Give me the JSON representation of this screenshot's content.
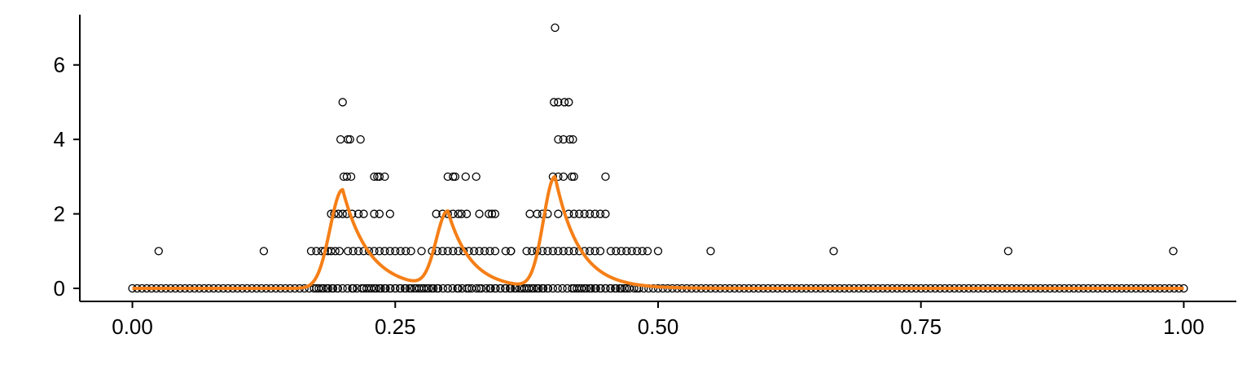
{
  "chart_data": {
    "type": "scatter",
    "title": "",
    "xlabel": "",
    "ylabel": "",
    "xlim": [
      -0.05,
      1.05
    ],
    "ylim": [
      -0.35,
      7.35
    ],
    "x_ticks": [
      0,
      0.25,
      0.5,
      0.75,
      1
    ],
    "x_tick_labels": [
      "0.00",
      "0.25",
      "0.50",
      "0.75",
      "1.00"
    ],
    "y_ticks": [
      0,
      2,
      4,
      6
    ],
    "y_tick_labels": [
      "0",
      "2",
      "4",
      "6"
    ],
    "grid": false,
    "legend": "none",
    "colors": {
      "points_stroke": "#000000",
      "curve": "#f57f17",
      "axis": "#000000"
    },
    "series": [
      {
        "kind": "scatter",
        "points": [
          [
            0.025,
            1
          ],
          [
            0.125,
            1
          ],
          [
            0.55,
            1
          ],
          [
            0.667,
            1
          ],
          [
            0.833,
            1
          ],
          [
            0.99,
            1
          ],
          [
            0.2,
            5
          ],
          [
            0.198,
            4
          ],
          [
            0.205,
            4
          ],
          [
            0.207,
            4
          ],
          [
            0.217,
            4
          ],
          [
            0.201,
            3
          ],
          [
            0.204,
            3
          ],
          [
            0.208,
            3
          ],
          [
            0.23,
            3
          ],
          [
            0.233,
            3
          ],
          [
            0.235,
            3
          ],
          [
            0.24,
            3
          ],
          [
            0.189,
            2
          ],
          [
            0.192,
            2
          ],
          [
            0.196,
            2
          ],
          [
            0.2,
            2
          ],
          [
            0.204,
            2
          ],
          [
            0.209,
            2
          ],
          [
            0.215,
            2
          ],
          [
            0.22,
            2
          ],
          [
            0.23,
            2
          ],
          [
            0.235,
            2
          ],
          [
            0.245,
            2
          ],
          [
            0.17,
            1
          ],
          [
            0.175,
            1
          ],
          [
            0.18,
            1
          ],
          [
            0.183,
            1
          ],
          [
            0.186,
            1
          ],
          [
            0.189,
            1
          ],
          [
            0.193,
            1
          ],
          [
            0.197,
            1
          ],
          [
            0.205,
            1
          ],
          [
            0.21,
            1
          ],
          [
            0.215,
            1
          ],
          [
            0.22,
            1
          ],
          [
            0.225,
            1
          ],
          [
            0.23,
            1
          ],
          [
            0.235,
            1
          ],
          [
            0.24,
            1
          ],
          [
            0.245,
            1
          ],
          [
            0.25,
            1
          ],
          [
            0.255,
            1
          ],
          [
            0.26,
            1
          ],
          [
            0.265,
            1
          ],
          [
            0.275,
            1
          ],
          [
            0.285,
            1
          ],
          [
            0.29,
            1
          ],
          [
            0.295,
            1
          ],
          [
            0.3,
            3
          ],
          [
            0.305,
            3
          ],
          [
            0.307,
            3
          ],
          [
            0.317,
            3
          ],
          [
            0.327,
            3
          ],
          [
            0.289,
            2
          ],
          [
            0.295,
            2
          ],
          [
            0.3,
            2
          ],
          [
            0.305,
            2
          ],
          [
            0.31,
            2
          ],
          [
            0.313,
            2
          ],
          [
            0.318,
            2
          ],
          [
            0.33,
            2
          ],
          [
            0.339,
            2
          ],
          [
            0.342,
            2
          ],
          [
            0.345,
            2
          ],
          [
            0.3,
            1
          ],
          [
            0.305,
            1
          ],
          [
            0.31,
            1
          ],
          [
            0.315,
            1
          ],
          [
            0.32,
            1
          ],
          [
            0.325,
            1
          ],
          [
            0.33,
            1
          ],
          [
            0.335,
            1
          ],
          [
            0.34,
            1
          ],
          [
            0.345,
            1
          ],
          [
            0.355,
            1
          ],
          [
            0.36,
            1
          ],
          [
            0.402,
            7
          ],
          [
            0.401,
            5
          ],
          [
            0.405,
            5
          ],
          [
            0.411,
            5
          ],
          [
            0.415,
            5
          ],
          [
            0.405,
            4
          ],
          [
            0.41,
            4
          ],
          [
            0.416,
            4
          ],
          [
            0.419,
            4
          ],
          [
            0.4,
            3
          ],
          [
            0.405,
            3
          ],
          [
            0.41,
            3
          ],
          [
            0.418,
            3
          ],
          [
            0.42,
            3
          ],
          [
            0.45,
            3
          ],
          [
            0.378,
            2
          ],
          [
            0.385,
            2
          ],
          [
            0.39,
            2
          ],
          [
            0.395,
            2
          ],
          [
            0.405,
            2
          ],
          [
            0.415,
            2
          ],
          [
            0.42,
            2
          ],
          [
            0.425,
            2
          ],
          [
            0.43,
            2
          ],
          [
            0.435,
            2
          ],
          [
            0.44,
            2
          ],
          [
            0.445,
            2
          ],
          [
            0.45,
            2
          ],
          [
            0.36,
            1
          ],
          [
            0.375,
            1
          ],
          [
            0.38,
            1
          ],
          [
            0.385,
            1
          ],
          [
            0.39,
            1
          ],
          [
            0.395,
            1
          ],
          [
            0.4,
            1
          ],
          [
            0.405,
            1
          ],
          [
            0.41,
            1
          ],
          [
            0.415,
            1
          ],
          [
            0.42,
            1
          ],
          [
            0.425,
            1
          ],
          [
            0.43,
            1
          ],
          [
            0.435,
            1
          ],
          [
            0.44,
            1
          ],
          [
            0.445,
            1
          ],
          [
            0.455,
            1
          ],
          [
            0.46,
            1
          ],
          [
            0.465,
            1
          ],
          [
            0.47,
            1
          ],
          [
            0.475,
            1
          ],
          [
            0.48,
            1
          ],
          [
            0.485,
            1
          ],
          [
            0.49,
            1
          ],
          [
            0.5,
            1
          ],
          [
            0.175,
            0
          ],
          [
            0.18,
            0
          ],
          [
            0.185,
            0
          ],
          [
            0.19,
            0
          ],
          [
            0.195,
            0
          ],
          [
            0.21,
            0
          ],
          [
            0.22,
            0
          ],
          [
            0.225,
            0
          ],
          [
            0.23,
            0
          ],
          [
            0.235,
            0
          ],
          [
            0.24,
            0
          ],
          [
            0.245,
            0
          ],
          [
            0.25,
            0
          ],
          [
            0.255,
            0
          ],
          [
            0.26,
            0
          ],
          [
            0.265,
            0
          ],
          [
            0.27,
            0
          ],
          [
            0.275,
            0
          ],
          [
            0.28,
            0
          ],
          [
            0.285,
            0
          ],
          [
            0.29,
            0
          ],
          [
            0.3,
            0
          ],
          [
            0.31,
            0
          ],
          [
            0.32,
            0
          ],
          [
            0.33,
            0
          ],
          [
            0.34,
            0
          ],
          [
            0.345,
            0
          ],
          [
            0.35,
            0
          ],
          [
            0.355,
            0
          ],
          [
            0.36,
            0
          ],
          [
            0.365,
            0
          ],
          [
            0.37,
            0
          ],
          [
            0.375,
            0
          ],
          [
            0.38,
            0
          ],
          [
            0.385,
            0
          ],
          [
            0.39,
            0
          ],
          [
            0.395,
            0
          ],
          [
            0.42,
            0
          ],
          [
            0.425,
            0
          ],
          [
            0.43,
            0
          ],
          [
            0.435,
            0
          ],
          [
            0.44,
            0
          ],
          [
            0.445,
            0
          ],
          [
            0.45,
            0
          ],
          [
            0.455,
            0
          ],
          [
            0.46,
            0
          ],
          [
            0.465,
            0
          ],
          [
            0.47,
            0
          ],
          [
            0.48,
            0
          ]
        ],
        "baseline": {
          "y": 0,
          "x_start": 0,
          "x_end": 1,
          "dense": true
        }
      },
      {
        "kind": "line",
        "peaks": [
          {
            "x": 0.2,
            "y": 2.65,
            "rise_width": 0.012,
            "decay": 0.025
          },
          {
            "x": 0.3,
            "y": 2.03,
            "rise_width": 0.011,
            "decay": 0.022
          },
          {
            "x": 0.402,
            "y": 2.98,
            "rise_width": 0.011,
            "decay": 0.023
          }
        ]
      }
    ]
  }
}
